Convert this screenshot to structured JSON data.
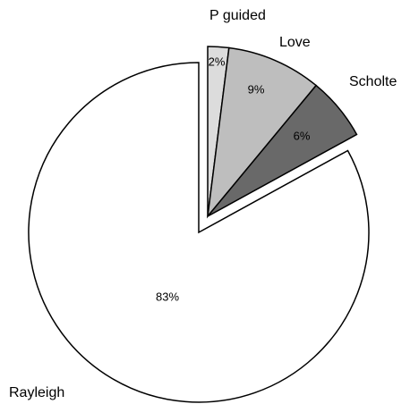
{
  "chart_data": {
    "type": "pie",
    "categories": [
      "P guided",
      "Love",
      "Scholte",
      "Rayleigh"
    ],
    "values": [
      2,
      9,
      6,
      83
    ],
    "value_labels": [
      "2%",
      "9%",
      "6%",
      "83%"
    ],
    "colors": [
      "#dcdcdc",
      "#bebebe",
      "#696969",
      "#ffffff"
    ],
    "exploded": [
      true,
      true,
      true,
      false
    ]
  }
}
